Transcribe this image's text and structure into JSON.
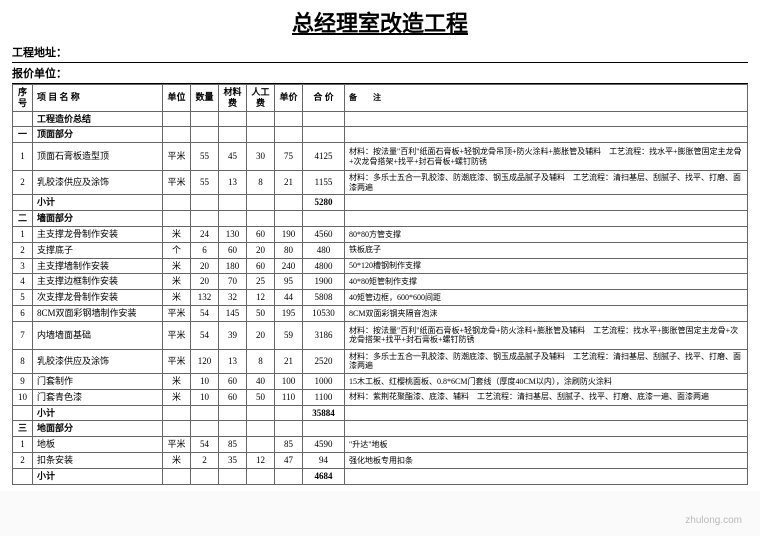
{
  "title": "总经理室改造工程",
  "meta": {
    "addr_label": "工程地址：",
    "company_label": "报价单位："
  },
  "headers": [
    "序号",
    "项 目 名 称",
    "单位",
    "数量",
    "材料费",
    "人工费",
    "单价",
    "合 价",
    "备　　注"
  ],
  "summary_label": "工程造价总结",
  "sections": [
    {
      "num": "一",
      "name": "顶面部分",
      "rows": [
        {
          "n": "1",
          "name": "顶面石膏板造型顶",
          "u": "平米",
          "q": "55",
          "m": "45",
          "l": "30",
          "p": "75",
          "t": "4125",
          "r": "材料：按法量\"百利\"纸面石膏板+轻钢龙骨吊顶+防火涂料+膨胀管及辅料　工艺流程：找水平+膨胀管固定主龙骨+次龙骨搭架+找平+封石膏板+螺钉防锈"
        },
        {
          "n": "2",
          "name": "乳胶漆供应及涂饰",
          "u": "平米",
          "q": "55",
          "m": "13",
          "l": "8",
          "p": "21",
          "t": "1155",
          "r": "材料：多乐士五合一乳胶漆、防潮底漆、钢玉成品腻子及辅料　工艺流程：清扫基层、刮腻子、找平、打磨、面漆两遍"
        }
      ],
      "subtotal": "5280"
    },
    {
      "num": "二",
      "name": "墙面部分",
      "rows": [
        {
          "n": "1",
          "name": "主支撑龙骨制作安装",
          "u": "米",
          "q": "24",
          "m": "130",
          "l": "60",
          "p": "190",
          "t": "4560",
          "r": "80*80方管支撑"
        },
        {
          "n": "2",
          "name": "支撑底子",
          "u": "个",
          "q": "6",
          "m": "60",
          "l": "20",
          "p": "80",
          "t": "480",
          "r": "铁板底子"
        },
        {
          "n": "3",
          "name": "主支撑墙制作安装",
          "u": "米",
          "q": "20",
          "m": "180",
          "l": "60",
          "p": "240",
          "t": "4800",
          "r": "50*120槽钢制作支撑"
        },
        {
          "n": "4",
          "name": "主支撑边框制作安装",
          "u": "米",
          "q": "20",
          "m": "70",
          "l": "25",
          "p": "95",
          "t": "1900",
          "r": "40*80矩管制作支撑"
        },
        {
          "n": "5",
          "name": "次支撑龙骨制作安装",
          "u": "米",
          "q": "132",
          "m": "32",
          "l": "12",
          "p": "44",
          "t": "5808",
          "r": "40矩管边框，600*600间距"
        },
        {
          "n": "6",
          "name": "8CM双面彩钢墙制作安装",
          "u": "平米",
          "q": "54",
          "m": "145",
          "l": "50",
          "p": "195",
          "t": "10530",
          "r": "8CM双面彩钢夹隔音泡沫"
        },
        {
          "n": "7",
          "name": "内墙墙面基础",
          "u": "平米",
          "q": "54",
          "m": "39",
          "l": "20",
          "p": "59",
          "t": "3186",
          "r": "材料：按法量\"百利\"纸面石膏板+轻钢龙骨+防火涂料+膨胀管及辅料　工艺流程：找水平+膨胀管固定主龙骨+次龙骨搭架+找平+封石膏板+螺钉防锈"
        },
        {
          "n": "8",
          "name": "乳胶漆供应及涂饰",
          "u": "平米",
          "q": "120",
          "m": "13",
          "l": "8",
          "p": "21",
          "t": "2520",
          "r": "材料：多乐士五合一乳胶漆、防潮底漆、钢玉成品腻子及辅料　工艺流程：清扫基层、刮腻子、找平、打磨、面漆两遍"
        },
        {
          "n": "9",
          "name": "门套制作",
          "u": "米",
          "q": "10",
          "m": "60",
          "l": "40",
          "p": "100",
          "t": "1000",
          "r": "15木工板、红樱桃面板、0.8*6CM门套线（厚度40CM以内），涂刷防火涂料"
        },
        {
          "n": "10",
          "name": "门套青色漆",
          "u": "米",
          "q": "10",
          "m": "60",
          "l": "50",
          "p": "110",
          "t": "1100",
          "r": "材料：紫荆花聚酯漆、底漆、辅料　工艺流程：清扫基层、刮腻子、找平、打磨、底漆一遍、面漆两遍"
        }
      ],
      "subtotal": "35884"
    },
    {
      "num": "三",
      "name": "地面部分",
      "rows": [
        {
          "n": "1",
          "name": "地板",
          "u": "平米",
          "q": "54",
          "m": "85",
          "l": "",
          "p": "85",
          "t": "4590",
          "r": "\"升达\"地板"
        },
        {
          "n": "2",
          "name": "扣条安装",
          "u": "米",
          "q": "2",
          "m": "35",
          "l": "12",
          "p": "47",
          "t": "94",
          "r": "强化地板专用扣条"
        }
      ],
      "subtotal": "4684"
    }
  ],
  "subtotal_label": "小计",
  "watermark": "zhulong.com"
}
